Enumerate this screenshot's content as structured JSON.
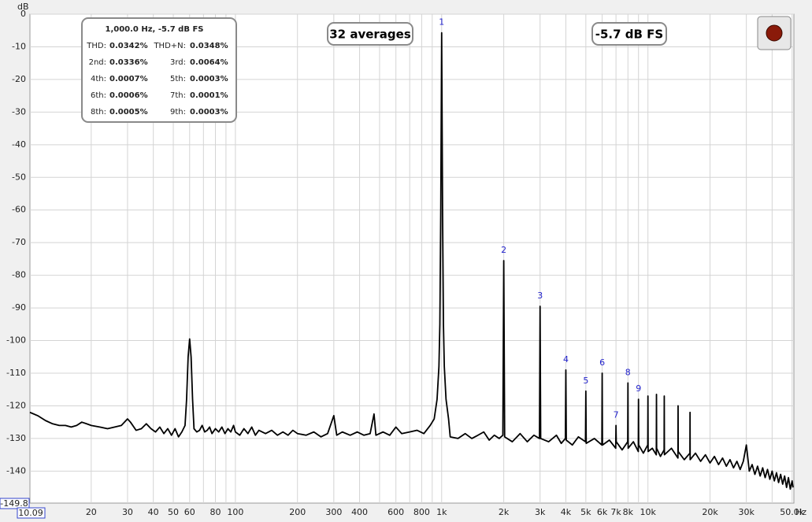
{
  "chart_data": {
    "type": "line",
    "y_label": "dB",
    "x_label": "Hz",
    "log_x": true,
    "grid": true,
    "xlim": [
      10.09,
      51000
    ],
    "ylim": [
      -149.8,
      0
    ],
    "yticks": [
      0,
      -10,
      -20,
      -30,
      -40,
      -50,
      -60,
      -70,
      -80,
      -90,
      -100,
      -110,
      -120,
      -130,
      -140
    ],
    "xticks": [
      20,
      30,
      40,
      50,
      60,
      80,
      100,
      200,
      300,
      400,
      600,
      800,
      {
        "value": 1000,
        "label": "1k"
      },
      {
        "value": 2000,
        "label": "2k"
      },
      {
        "value": 3000,
        "label": "3k"
      },
      {
        "value": 4000,
        "label": "4k"
      },
      {
        "value": 5000,
        "label": "5k"
      },
      {
        "value": 6000,
        "label": "6k"
      },
      {
        "value": 7000,
        "label": "7k"
      },
      {
        "value": 8000,
        "label": "8k"
      },
      {
        "value": 10000,
        "label": "10k"
      },
      {
        "value": 20000,
        "label": "20k"
      },
      {
        "value": 30000,
        "label": "30k"
      },
      {
        "value": 50000,
        "label": "50.0k"
      }
    ],
    "x_minor_ticks": [
      70,
      90,
      500,
      700,
      900,
      9000,
      40000
    ],
    "averages_label": "32 averages",
    "level_label": "-5.7 dB FS",
    "stats": {
      "title": "1,000.0 Hz, -5.7 dB FS",
      "rows": [
        [
          "THD:",
          "0.0342%",
          "THD+N:",
          "0.0348%"
        ],
        [
          "2nd:",
          "0.0336%",
          "3rd:",
          "0.0064%"
        ],
        [
          "4th:",
          "0.0007%",
          "5th:",
          "0.0003%"
        ],
        [
          "6th:",
          "0.0006%",
          "7th:",
          "0.0001%"
        ],
        [
          "8th:",
          "0.0005%",
          "9th:",
          "0.0003%"
        ]
      ]
    },
    "annotations": [
      {
        "text": "1",
        "x": 1000,
        "y": -5.7
      },
      {
        "text": "2",
        "x": 2000,
        "y": -75.5
      },
      {
        "text": "3",
        "x": 3000,
        "y": -89.5
      },
      {
        "text": "4",
        "x": 4000,
        "y": -109
      },
      {
        "text": "5",
        "x": 5000,
        "y": -115.5
      },
      {
        "text": "6",
        "x": 6000,
        "y": -110
      },
      {
        "text": "7",
        "x": 7000,
        "y": -126
      },
      {
        "text": "8",
        "x": 8000,
        "y": -113
      },
      {
        "text": "9",
        "x": 9000,
        "y": -118
      }
    ],
    "x": [
      10.09,
      11,
      12,
      13,
      14,
      15,
      16,
      17,
      18,
      19,
      20,
      22,
      24,
      26,
      28,
      30,
      31,
      33,
      35,
      37,
      39,
      41,
      43,
      45,
      47,
      49,
      51,
      53,
      55,
      57,
      58,
      59,
      60,
      61,
      62,
      63,
      65,
      67,
      69,
      71,
      73,
      75,
      77,
      80,
      83,
      86,
      89,
      92,
      95,
      98,
      100,
      105,
      110,
      115,
      120,
      125,
      130,
      140,
      150,
      160,
      170,
      180,
      190,
      200,
      220,
      240,
      260,
      280,
      300,
      310,
      330,
      360,
      390,
      420,
      450,
      470,
      480,
      520,
      560,
      600,
      640,
      700,
      760,
      820,
      880,
      920,
      950,
      970,
      980,
      990,
      1000,
      1010,
      1020,
      1030,
      1050,
      1080,
      1100,
      1200,
      1300,
      1400,
      1500,
      1600,
      1700,
      1800,
      1900,
      1980,
      2000,
      2020,
      2200,
      2400,
      2600,
      2800,
      2980,
      3000,
      3020,
      3300,
      3600,
      3800,
      3980,
      4000,
      4020,
      4300,
      4600,
      4980,
      5000,
      5020,
      5500,
      5980,
      6000,
      6020,
      6500,
      6980,
      7000,
      7020,
      7500,
      7980,
      8000,
      8020,
      8500,
      8980,
      9000,
      9020,
      9500,
      9980,
      10000,
      10020,
      10500,
      10980,
      11000,
      11020,
      11500,
      11980,
      12000,
      12020,
      13000,
      13980,
      14000,
      14020,
      15000,
      15980,
      16000,
      16020,
      17000,
      18000,
      19000,
      20000,
      21000,
      22000,
      23000,
      24000,
      25000,
      26000,
      27000,
      28000,
      29000,
      30000,
      31000,
      32000,
      33000,
      34000,
      35000,
      36000,
      37000,
      38000,
      39000,
      40000,
      41000,
      42000,
      43000,
      44000,
      45000,
      46000,
      47000,
      48000,
      49000,
      50000,
      50500
    ],
    "series": [
      {
        "color": "#000000",
        "values": [
          -122,
          -123,
          -124.5,
          -125.5,
          -126,
          -126,
          -126.5,
          -126,
          -125,
          -125.5,
          -126,
          -126.5,
          -127,
          -126.5,
          -126,
          -124,
          -125,
          -127.5,
          -127,
          -125.5,
          -127,
          -128,
          -126.5,
          -128.5,
          -127,
          -129,
          -127,
          -129.5,
          -128,
          -126,
          -118,
          -105,
          -99.5,
          -105,
          -118,
          -127,
          -128,
          -127.5,
          -126,
          -128,
          -127.5,
          -126.5,
          -128.5,
          -127,
          -128,
          -126.5,
          -128.5,
          -127,
          -128,
          -126,
          -128,
          -129,
          -127,
          -128.5,
          -126.5,
          -129,
          -127.5,
          -128.5,
          -127.5,
          -129,
          -128,
          -129,
          -127.5,
          -128.5,
          -129,
          -128,
          -129.5,
          -128.5,
          -123,
          -129,
          -128,
          -129,
          -128,
          -129,
          -128.5,
          -122.5,
          -129,
          -128,
          -129,
          -126.5,
          -128.5,
          -128,
          -127.5,
          -128.5,
          -126,
          -124,
          -118,
          -108,
          -95,
          -60,
          -5.7,
          -60,
          -95,
          -108,
          -118,
          -124,
          -129.5,
          -130,
          -128.5,
          -130,
          -129,
          -128,
          -130.5,
          -129,
          -130,
          -129,
          -75.5,
          -129.5,
          -131,
          -128.5,
          -131,
          -129,
          -130,
          -89.5,
          -130,
          -131,
          -129,
          -131.5,
          -130,
          -109,
          -130.5,
          -132,
          -129.5,
          -131,
          -115.5,
          -131.5,
          -130,
          -132,
          -110,
          -132,
          -130.5,
          -133,
          -126,
          -131,
          -133.5,
          -131,
          -113,
          -133,
          -131,
          -134,
          -118,
          -132,
          -134.5,
          -132,
          -117,
          -134,
          -133,
          -135,
          -116.5,
          -133,
          -135.5,
          -133.5,
          -117,
          -135,
          -133,
          -136,
          -120,
          -134,
          -136.5,
          -134.5,
          -122,
          -136.5,
          -134.5,
          -137,
          -135,
          -137.5,
          -135.5,
          -138,
          -136,
          -138.5,
          -136.5,
          -139,
          -137,
          -139.5,
          -137,
          -132,
          -140,
          -138,
          -141,
          -138.5,
          -141.5,
          -139,
          -142,
          -139.5,
          -142.5,
          -140,
          -143,
          -140.5,
          -143.5,
          -141,
          -144,
          -141.5,
          -145,
          -142,
          -145.5,
          -143,
          -145
        ]
      }
    ]
  }
}
